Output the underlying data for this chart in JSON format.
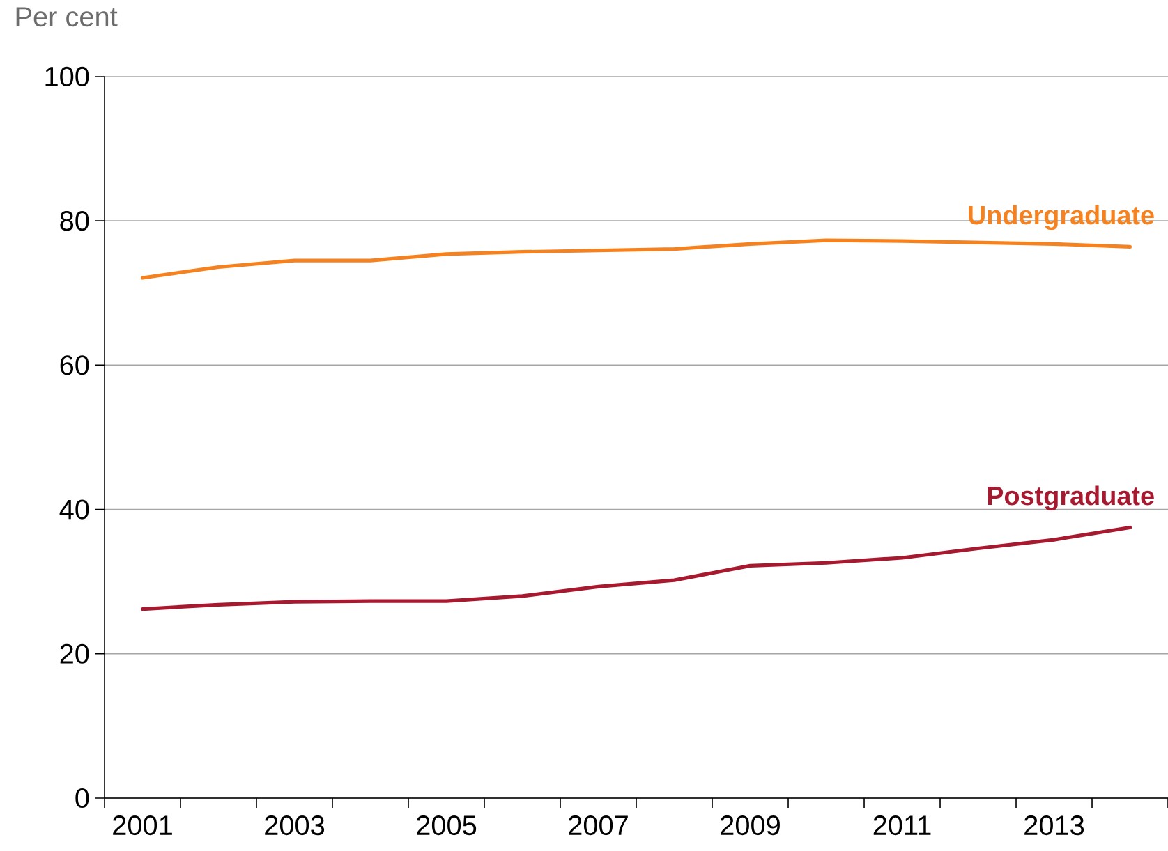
{
  "chart_data": {
    "type": "line",
    "ylabel": "Per cent",
    "categories": [
      "2001",
      null,
      "2003",
      null,
      "2005",
      null,
      "2007",
      null,
      "2009",
      null,
      "2011",
      null,
      "2013",
      null
    ],
    "series": [
      {
        "name": "Undergraduate",
        "color": "#f58220",
        "values": [
          72.1,
          73.6,
          74.5,
          74.5,
          75.4,
          75.7,
          75.9,
          76.1,
          76.8,
          77.3,
          77.2,
          77.0,
          76.8,
          76.4
        ]
      },
      {
        "name": "Postgraduate",
        "color": "#a6192e",
        "values": [
          26.2,
          26.8,
          27.2,
          27.3,
          27.3,
          28.0,
          29.3,
          30.2,
          32.2,
          32.6,
          33.3,
          34.6,
          35.8,
          37.5
        ]
      }
    ],
    "ylim": [
      0,
      100
    ],
    "yticks": [
      0,
      20,
      40,
      60,
      80,
      100
    ],
    "grid": "y",
    "legend": false
  }
}
